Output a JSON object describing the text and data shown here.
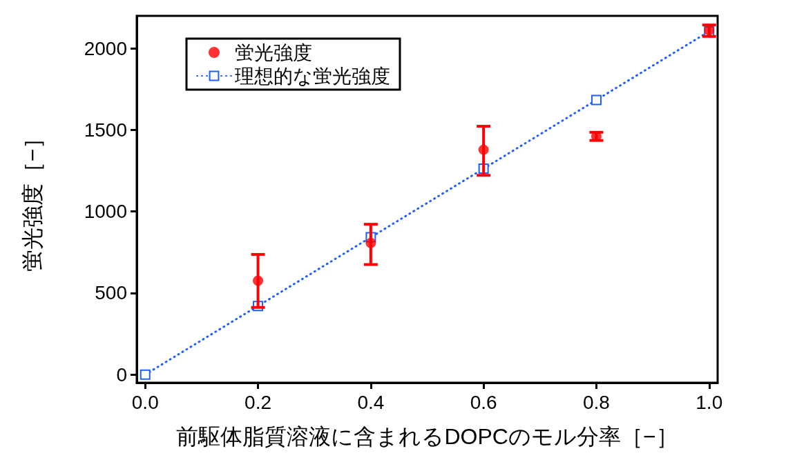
{
  "chart_data": {
    "type": "scatter",
    "xlabel": "前駆体脂質溶液に含まれるDOPCのモル分率［−］",
    "ylabel": "蛍光強度［−］",
    "xlim": [
      -0.015,
      1.015
    ],
    "ylim": [
      -50,
      2200
    ],
    "xticks": [
      {
        "value": 0,
        "label": "0.0"
      },
      {
        "value": 0.2,
        "label": "0.2"
      },
      {
        "value": 0.4,
        "label": "0.4"
      },
      {
        "value": 0.6,
        "label": "0.6"
      },
      {
        "value": 0.8,
        "label": "0.8"
      },
      {
        "value": 1,
        "label": "1.0"
      }
    ],
    "yticks": [
      0,
      500,
      1000,
      1500,
      2000
    ],
    "grid": false,
    "legend": "top left",
    "series": [
      {
        "name": "蛍光強度",
        "marker": "circle",
        "color": "#ff0000",
        "x": [
          0.2,
          0.4,
          0.6,
          0.8,
          1.0
        ],
        "values": [
          576,
          807,
          1379,
          1461,
          2111
        ],
        "errors": [
          [
            412,
            737
          ],
          [
            675,
            922
          ],
          [
            1222,
            1523
          ],
          [
            1436,
            1486
          ],
          [
            2074,
            2144
          ]
        ]
      },
      {
        "name": "理想的な蛍光強度",
        "type": "line",
        "marker": "square",
        "line_style": "dotted",
        "color": "#1f5fff",
        "x": [
          0,
          0.2,
          0.4,
          0.6,
          0.8,
          1.0
        ],
        "values": [
          0,
          421,
          842,
          1263,
          1684,
          2105
        ]
      }
    ]
  }
}
